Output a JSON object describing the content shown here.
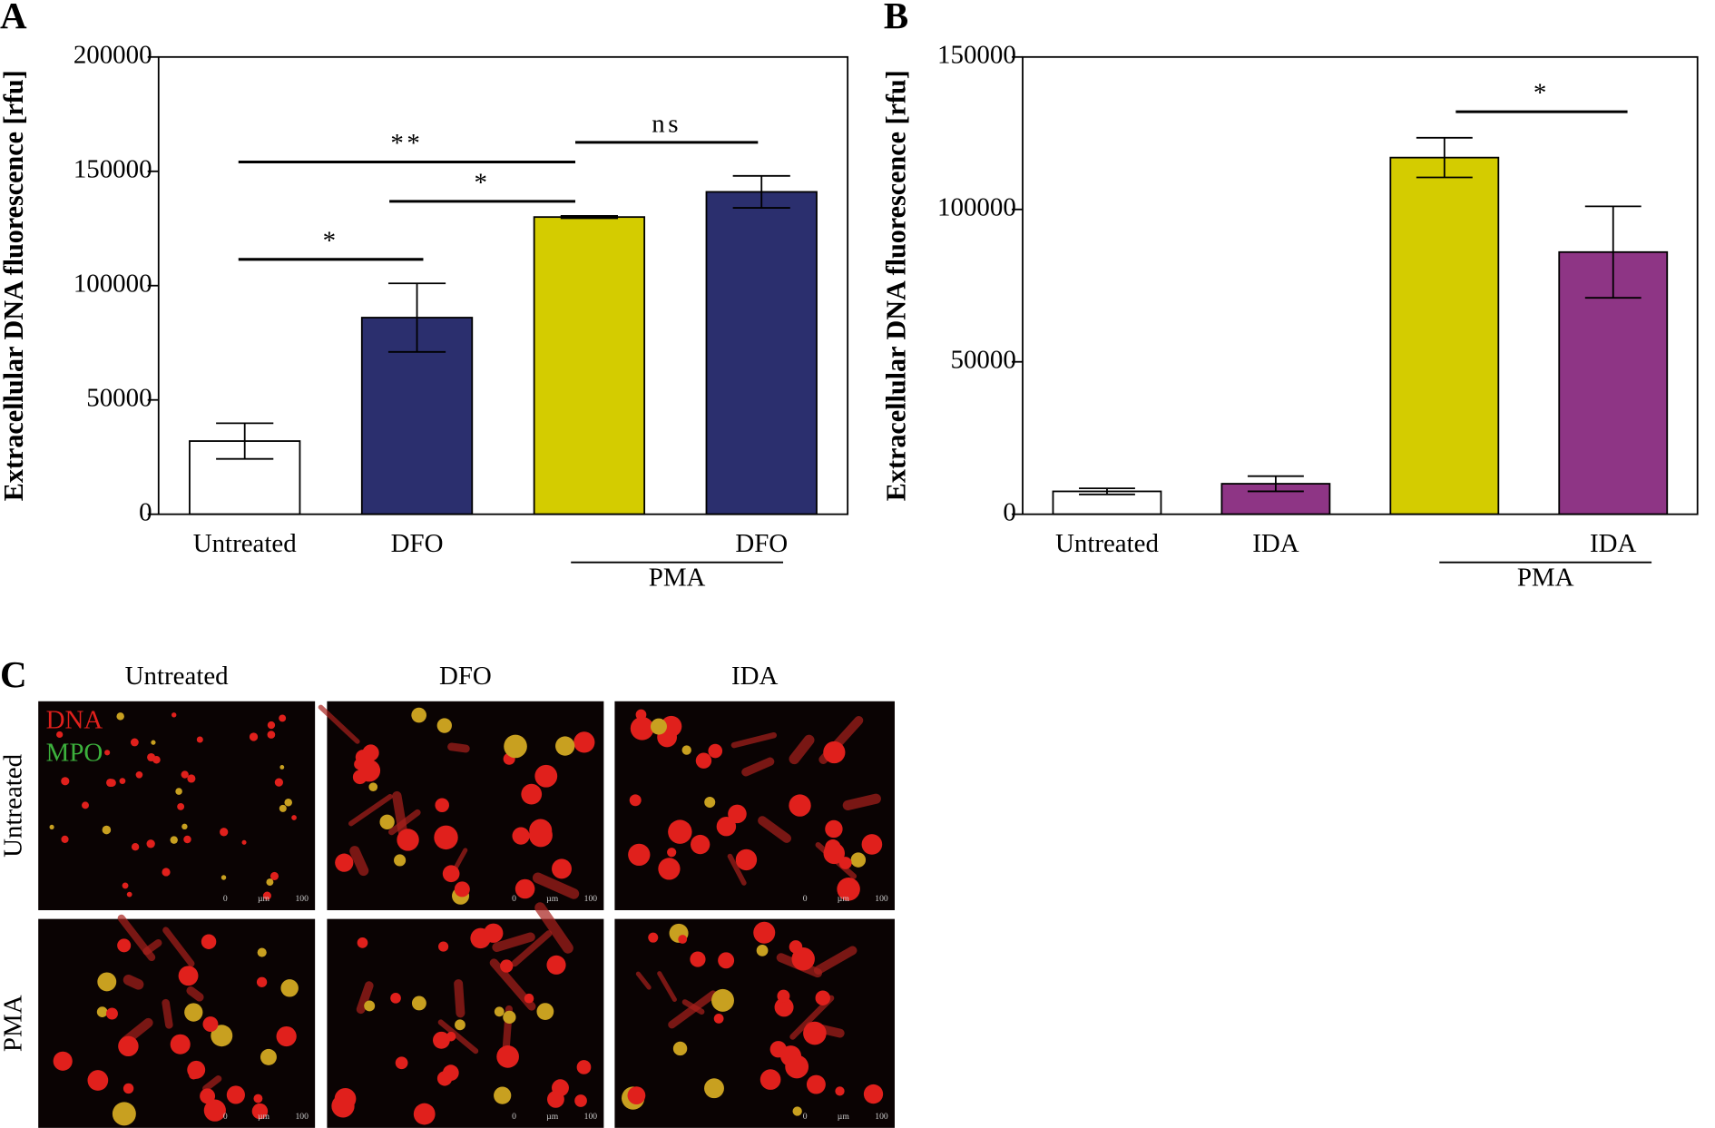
{
  "chart_data": [
    {
      "type": "bar",
      "panel_label": "A",
      "ylabel": "Extracellular DNA fluorescence [rfu]",
      "categories": [
        "Untreated",
        "DFO",
        null,
        "DFO"
      ],
      "values": [
        32000,
        86000,
        130000,
        141000
      ],
      "errors": [
        7800,
        15000,
        500,
        7000
      ],
      "colors": [
        "#ffffff",
        "#2b2f6e",
        "#d4cc00",
        "#2b2f6e"
      ],
      "ylim": [
        0,
        200000
      ],
      "yticks": [
        0,
        50000,
        100000,
        150000,
        200000
      ],
      "group_label": "PMA",
      "annotations": [
        "*",
        "*",
        "**",
        "ns"
      ]
    },
    {
      "type": "bar",
      "panel_label": "B",
      "ylabel": "Extracellular DNA fluorescence [rfu]",
      "categories": [
        "Untreated",
        "IDA",
        null,
        "IDA"
      ],
      "values": [
        7500,
        10000,
        117000,
        86000
      ],
      "errors": [
        1000,
        2500,
        6500,
        15000
      ],
      "colors": [
        "#ffffff",
        "#8e3585",
        "#d4cc00",
        "#8e3585"
      ],
      "ylim": [
        0,
        150000
      ],
      "yticks": [
        0,
        50000,
        100000,
        150000
      ],
      "group_label": "PMA",
      "annotations": [
        "*"
      ]
    }
  ],
  "panel_c": {
    "panel_label": "C",
    "columns": [
      "Untreated",
      "DFO",
      "IDA"
    ],
    "rows": [
      "Untreated",
      "PMA"
    ],
    "legend": [
      "DNA",
      "MPO"
    ],
    "scale_bar": [
      "0",
      "µm",
      "100"
    ]
  }
}
